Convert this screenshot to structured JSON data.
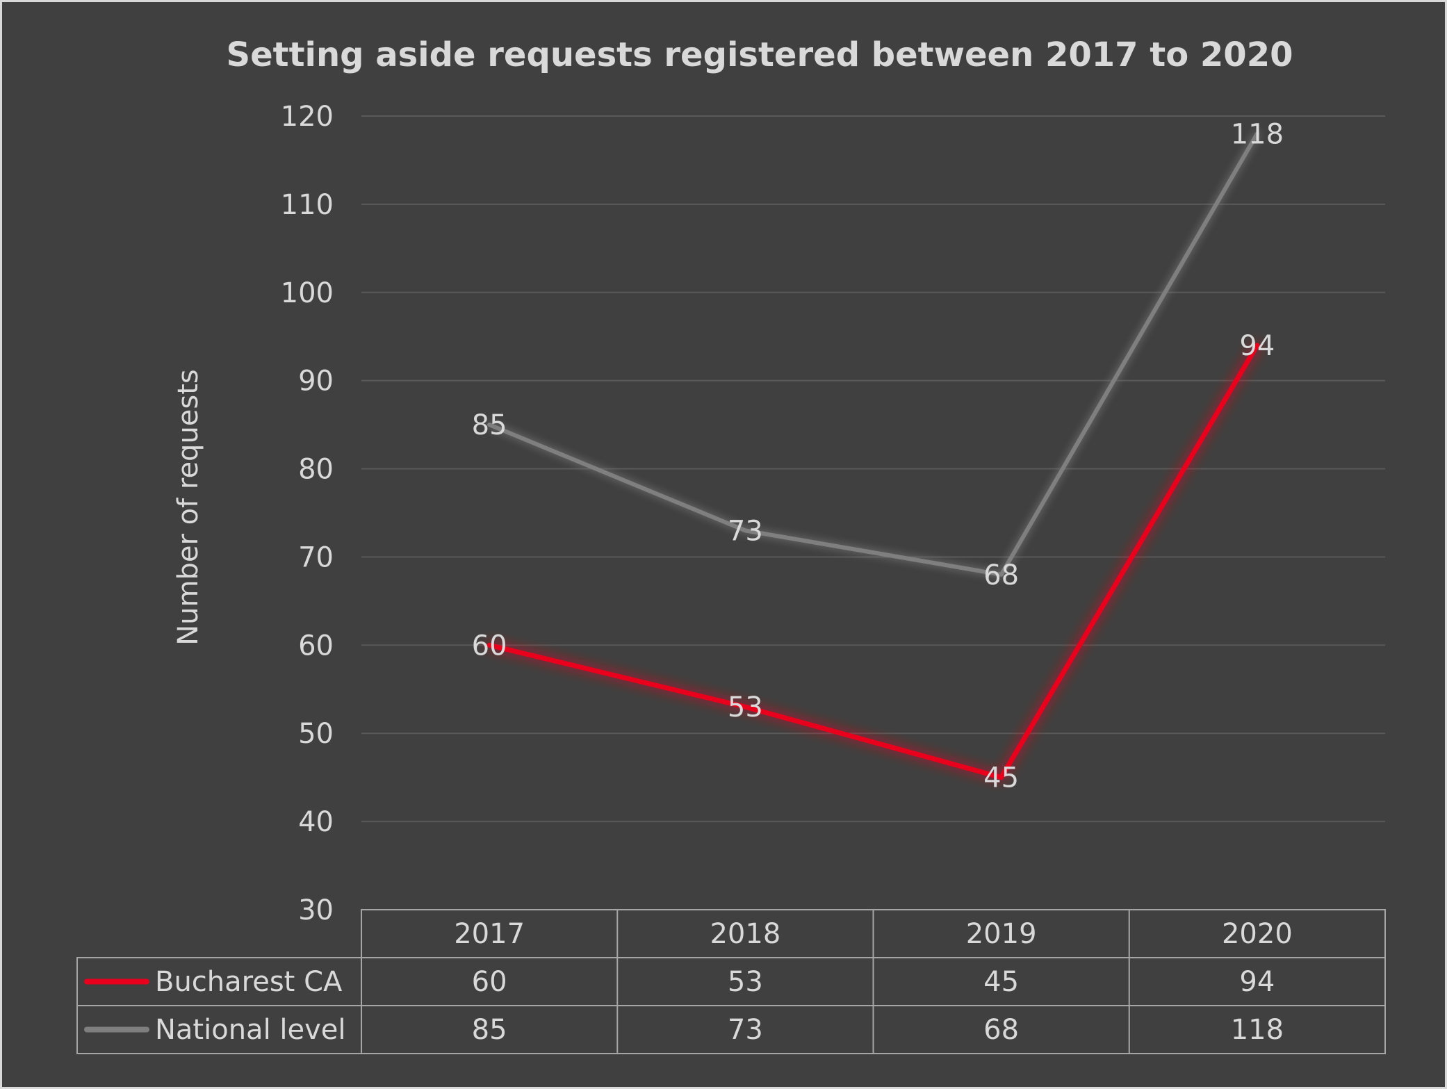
{
  "colors": {
    "background": "#404040",
    "grid": "#595959",
    "text": "#d9d9d9",
    "bucharest": "#e8001c",
    "national": "#7f7f7f",
    "table_border": "#a6a6a6"
  },
  "chart_data": {
    "type": "line",
    "title": "Setting aside requests registered between 2017 to 2020",
    "xlabel": "",
    "ylabel": "Number of requests",
    "categories": [
      "2017",
      "2018",
      "2019",
      "2020"
    ],
    "ylim": [
      30,
      120
    ],
    "yticks": [
      30,
      40,
      50,
      60,
      70,
      80,
      90,
      100,
      110,
      120
    ],
    "grid": true,
    "legend": "data-table",
    "series": [
      {
        "name": "Bucharest CA",
        "values": [
          60,
          53,
          45,
          94
        ],
        "color": "#e8001c"
      },
      {
        "name": "National level",
        "values": [
          85,
          73,
          68,
          118
        ],
        "color": "#7f7f7f"
      }
    ]
  }
}
